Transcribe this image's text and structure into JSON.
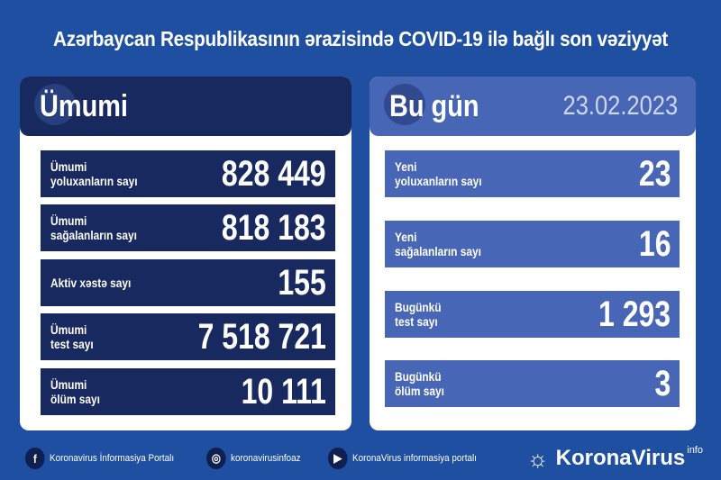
{
  "title": "Azərbaycan Respublikasının ərazisində COVID-19 ilə bağlı son vəziyyət",
  "colors": {
    "background": "#1f4fa0",
    "total_panel": "#17295f",
    "today_panel": "#4767b6"
  },
  "total": {
    "heading": "Ümumi",
    "rows": [
      {
        "label1": "Ümumi",
        "label2": "yoluxanların sayı",
        "value": "828 449"
      },
      {
        "label1": "Ümumi",
        "label2": "sağalanların sayı",
        "value": "818 183"
      },
      {
        "label1": "Aktiv xəstə sayı",
        "label2": "",
        "value": "155"
      },
      {
        "label1": "Ümumi",
        "label2": "test sayı",
        "value": "7 518 721"
      },
      {
        "label1": "Ümumi",
        "label2": "ölüm sayı",
        "value": "10 111"
      }
    ]
  },
  "today": {
    "heading": "Bu gün",
    "date": "23.02.2023",
    "rows": [
      {
        "label1": "Yeni",
        "label2": "yoluxanların sayı",
        "value": "23"
      },
      {
        "label1": "Yeni",
        "label2": "sağalanların sayı",
        "value": "16"
      },
      {
        "label1": "Bugünkü",
        "label2": "test sayı",
        "value": "1 293"
      },
      {
        "label1": "Bugünkü",
        "label2": "ölüm sayı",
        "value": "3"
      }
    ]
  },
  "footer": {
    "facebook": "Koronavirus İnformasiya Portalı",
    "instagram": "koronavirusinfoaz",
    "youtube": "KoronaVirus informasiya portalı",
    "brand": "KoronaVirus",
    "brand_sup": "info"
  }
}
